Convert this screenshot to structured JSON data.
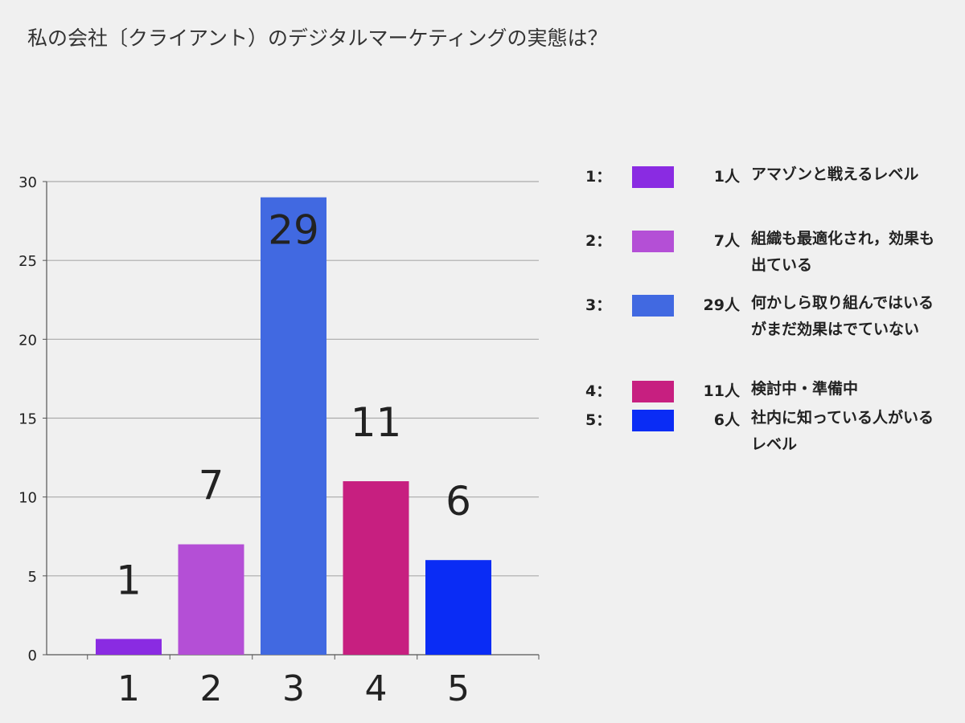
{
  "chart_data": {
    "type": "bar",
    "title": "私の会社〔クライアント）のデジタルマーケティングの実態は？",
    "categories": [
      "1",
      "2",
      "3",
      "4",
      "5"
    ],
    "values": [
      1,
      7,
      29,
      11,
      6
    ],
    "data_labels": [
      "1",
      "7",
      "29",
      "11",
      "6"
    ],
    "colors": [
      "#8a2be2",
      "#b44fd6",
      "#4169e1",
      "#c71f80",
      "#0a2cf5"
    ],
    "ylim": [
      0,
      30
    ],
    "yticks": [
      "0",
      "5",
      "10",
      "15",
      "20",
      "25",
      "30"
    ],
    "grid": true,
    "legend_position": "right",
    "legend": [
      {
        "key": "1：",
        "count": "1人",
        "text": "アマゾンと戦えるレベル"
      },
      {
        "key": "2：",
        "count": "7人",
        "text": "組織も最適化され，効果も出ている"
      },
      {
        "key": "3：",
        "count": "29人",
        "text": "何かしら取り組んではいるがまだ効果はでていない"
      },
      {
        "key": "4：",
        "count": "11人",
        "text": "検討中・準備中"
      },
      {
        "key": "5：",
        "count": "6人",
        "text": "社内に知っている人がいるレベル"
      }
    ]
  }
}
